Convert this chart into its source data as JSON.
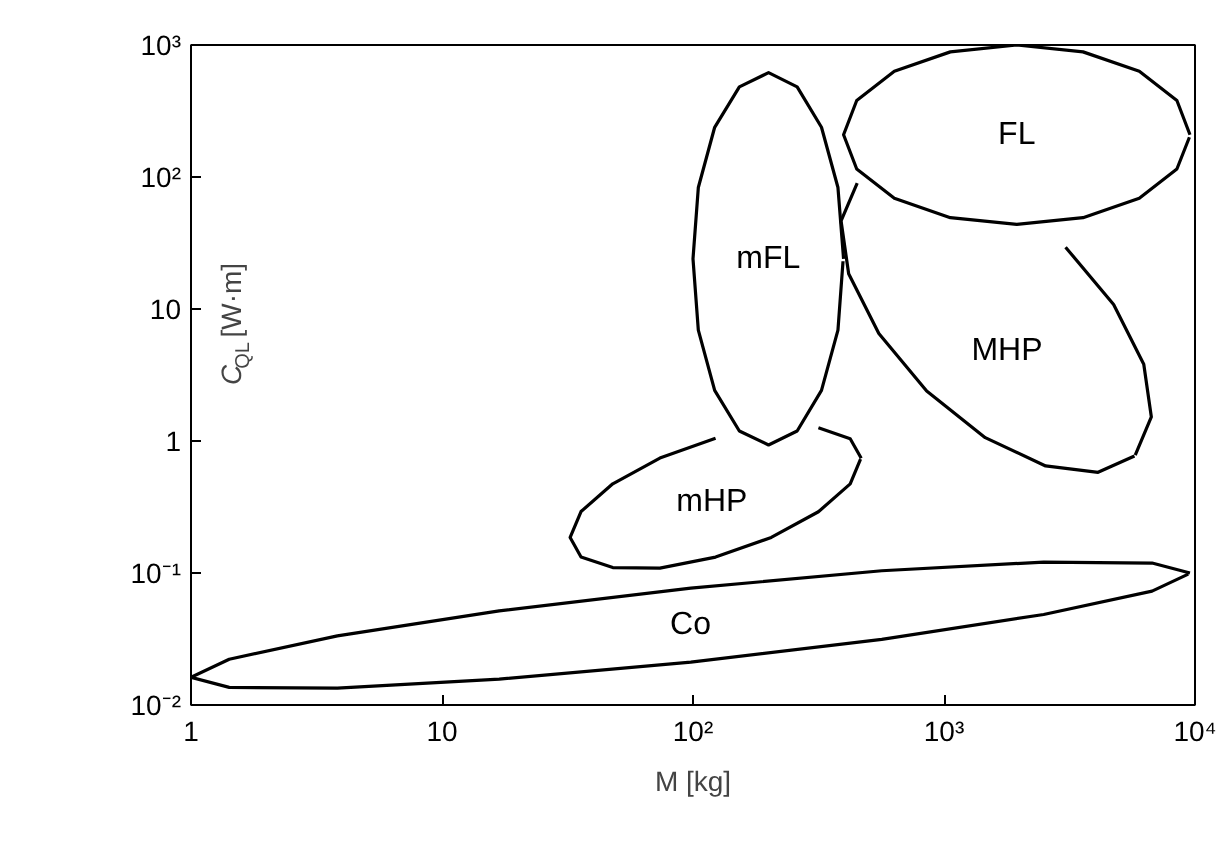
{
  "chart_data": {
    "type": "line",
    "xlabel": "M [kg]",
    "ylabel": "C$_{QL}$ [W·m]",
    "log": "xy",
    "grid": false,
    "legend": false,
    "marker": "none",
    "line_style": "solid",
    "xlim": [
      1,
      10000
    ],
    "ylim": [
      0.01,
      1000
    ],
    "xticks": [
      1,
      10,
      {
        "value": 100,
        "label": "10²"
      },
      {
        "value": 1000,
        "label": "10³"
      },
      {
        "value": 10000,
        "label": "10⁴"
      }
    ],
    "yticks": [
      {
        "value": 0.01,
        "label": "10⁻²"
      },
      {
        "value": 0.1,
        "label": "10⁻¹"
      },
      1,
      10,
      {
        "value": 100,
        "label": "10²"
      },
      {
        "value": 1000,
        "label": "10³"
      }
    ],
    "series": [
      {
        "name": "Co",
        "color": "#000000",
        "x": [
          9550,
          6745,
          2495,
          565,
          98,
          16.9,
          3.83,
          1.42,
          1,
          1.42,
          3.83,
          16.9,
          98,
          565,
          2495,
          6745,
          9400
        ],
        "values": [
          0.1,
          0.119,
          0.121,
          0.104,
          0.0767,
          0.0516,
          0.0334,
          0.0222,
          0.0162,
          0.0136,
          0.0134,
          0.0157,
          0.0211,
          0.0314,
          0.0485,
          0.0729,
          0.098
        ]
      },
      {
        "name": "mHP",
        "color": "#000000",
        "x": [
          468,
          423,
          316,
          205,
          123,
          73.8,
          47.9,
          35.8,
          32.4,
          35.8,
          47.9,
          73.8,
          123,
          205,
          316,
          423,
          465
        ],
        "values": [
          0.741,
          1.04,
          1.26,
          null,
          1.05,
          0.743,
          0.474,
          0.292,
          0.186,
          0.132,
          0.11,
          0.109,
          0.132,
          0.186,
          0.291,
          0.473,
          0.73
        ]
      },
      {
        "name": "mFL",
        "color": "#000000",
        "x": [
          398,
          378,
          325,
          260,
          200,
          153,
          122,
          105,
          100,
          105,
          122,
          153,
          200,
          260,
          325,
          378,
          396
        ],
        "values": [
          24,
          83.2,
          238,
          482,
          617,
          482,
          238,
          83.2,
          24,
          6.92,
          2.42,
          1.19,
          0.933,
          1.19,
          2.42,
          6.92,
          23
        ]
      },
      {
        "name": "MHP",
        "color": "#000000",
        "x": [
          5780,
          6700,
          6250,
          4740,
          3050,
          1790,
          1030,
          634,
          451,
          389,
          417,
          550,
          853,
          1460,
          2540,
          4110,
          5740
        ],
        "values": [
          0.783,
          1.52,
          3.81,
          10.8,
          29.4,
          null,
          null,
          null,
          89.9,
          46.5,
          18.5,
          6.52,
          2.39,
          1.06,
          0.647,
          0.579,
          0.77
        ]
      },
      {
        "name": "FL",
        "color": "#000000",
        "x": [
          9550,
          8470,
          6000,
          3580,
          1950,
          1060,
          634,
          449,
          398,
          449,
          634,
          1060,
          1950,
          3580,
          6000,
          8470,
          9500
        ],
        "values": [
          209,
          380,
          632,
          887,
          1000,
          887,
          632,
          380,
          209,
          115,
          69,
          49.2,
          43.7,
          49.2,
          69,
          115,
          200
        ]
      }
    ]
  }
}
